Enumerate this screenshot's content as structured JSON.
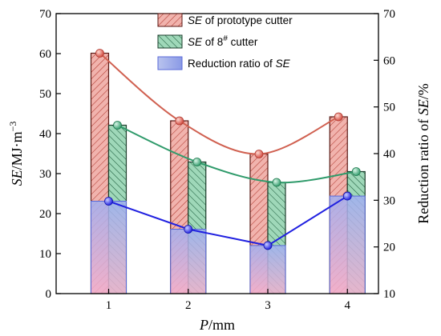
{
  "chart_data": {
    "type": "bar",
    "categories": [
      "1",
      "2",
      "3",
      "4"
    ],
    "xlabel": {
      "var": "P",
      "unit": "/mm"
    },
    "ylabel_left": {
      "var": "SE",
      "unit": "/MJ·m",
      "sup": "−3"
    },
    "ylabel_right": {
      "prefix": "Reduction ratio of ",
      "var": "SE",
      "unit": "/%"
    },
    "ylim_left": [
      0,
      70
    ],
    "yticks_left": [
      "0",
      "10",
      "20",
      "30",
      "40",
      "50",
      "60",
      "70"
    ],
    "ylim_right": [
      10,
      70
    ],
    "yticks_right": [
      "10",
      "20",
      "30",
      "40",
      "50",
      "60",
      "70"
    ],
    "series": [
      {
        "name": {
          "var": "SE",
          "rest": " of  prototype cutter"
        },
        "axis": "left",
        "kind": "bar+line",
        "values": [
          60.1,
          43.2,
          34.9,
          44.2
        ],
        "color": "#d9534f",
        "line_color": "#d06050"
      },
      {
        "name": {
          "var": "SE",
          "rest": " of  8",
          "sup": "#",
          "tail": "  cutter"
        },
        "axis": "left",
        "kind": "bar+line",
        "values": [
          42.1,
          32.9,
          27.8,
          30.5
        ],
        "color": "#3fa273",
        "line_color": "#2e9a6a"
      },
      {
        "name": {
          "prefix": "Reduction ratio of ",
          "var": "SE"
        },
        "axis": "right",
        "kind": "bar+line",
        "values": [
          29.8,
          23.8,
          20.3,
          30.9
        ],
        "color": "#2020e0"
      }
    ],
    "legend_position": "top-center",
    "grid": false
  }
}
